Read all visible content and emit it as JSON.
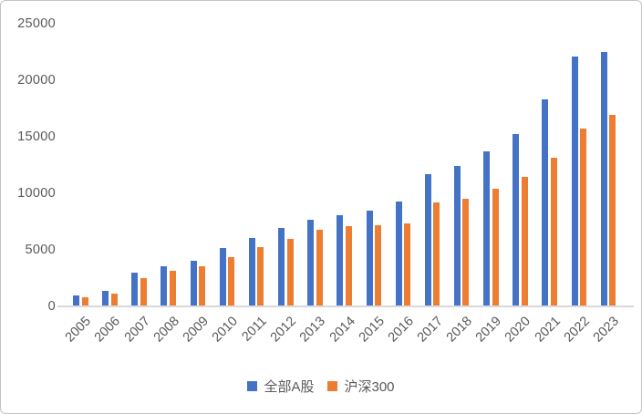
{
  "chart_data": {
    "type": "bar",
    "title": "",
    "xlabel": "",
    "ylabel": "",
    "categories": [
      "2005",
      "2006",
      "2007",
      "2008",
      "2009",
      "2010",
      "2011",
      "2012",
      "2013",
      "2014",
      "2015",
      "2016",
      "2017",
      "2018",
      "2019",
      "2020",
      "2021",
      "2022",
      "2023"
    ],
    "series": [
      {
        "name": "全部A股",
        "color": "#4472C4",
        "values": [
          850,
          1300,
          2900,
          3450,
          3950,
          5050,
          5950,
          6850,
          7600,
          8000,
          8400,
          9200,
          11650,
          12300,
          13600,
          15150,
          18250,
          22050,
          22450
        ]
      },
      {
        "name": "沪深300",
        "color": "#ED7D31",
        "values": [
          700,
          1050,
          2400,
          3100,
          3500,
          4300,
          5150,
          5900,
          6700,
          7000,
          7100,
          7250,
          9100,
          9450,
          10300,
          11400,
          13100,
          15650,
          16850
        ]
      }
    ],
    "ylim": [
      0,
      25000
    ],
    "yticks": [
      0,
      5000,
      10000,
      15000,
      20000,
      25000
    ],
    "grid": false,
    "legend_position": "bottom",
    "colors": {
      "axis_line": "#D9D9D9",
      "tick_label": "#595959",
      "legend_text": "#595959",
      "background": "#FFFFFF"
    }
  }
}
